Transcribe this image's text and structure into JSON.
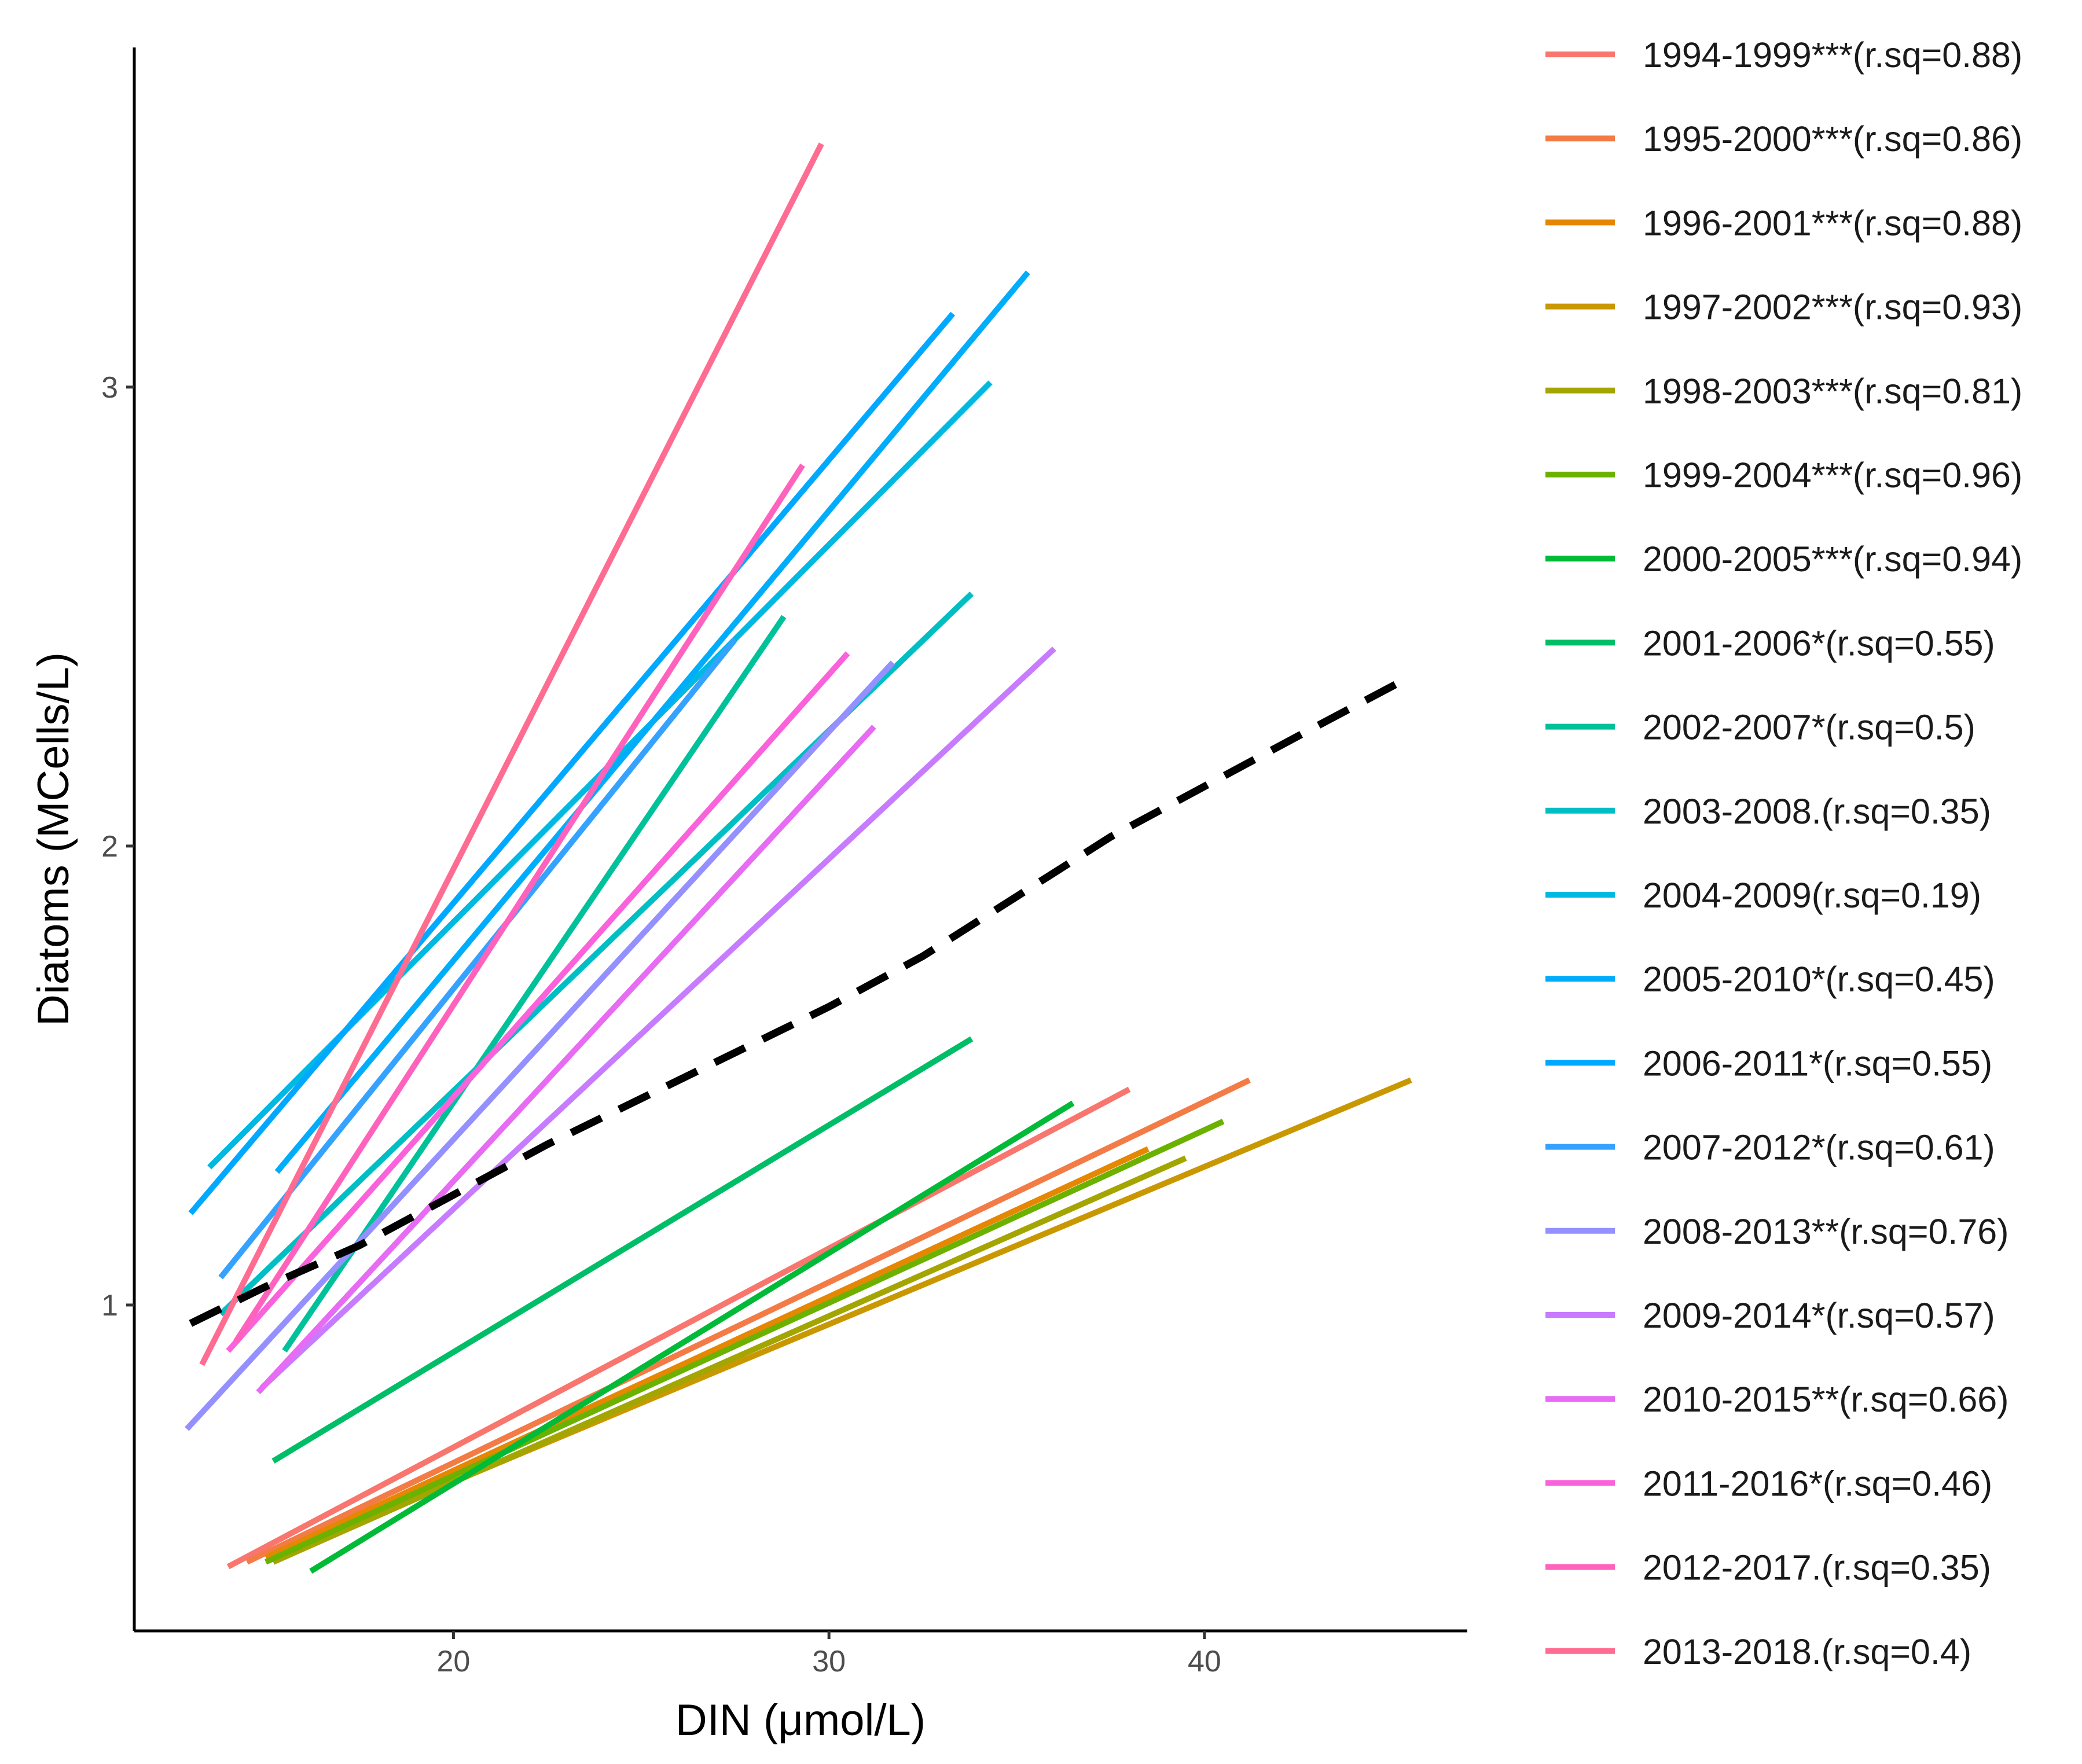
{
  "chart_data": {
    "type": "line",
    "title": "",
    "xlabel": "DIN (μmol/L)",
    "ylabel": "Diatoms (MCells/L)",
    "xlim": [
      11.5,
      47.0
    ],
    "ylim": [
      0.29,
      3.74
    ],
    "xticks": [
      20,
      30,
      40
    ],
    "yticks": [
      1,
      2,
      3
    ],
    "grid": false,
    "legend_position": "right",
    "series": [
      {
        "name": "1994-1999***(r.sq=0.88)",
        "color": "#F8766D",
        "x": [
          14.0,
          38.0
        ],
        "y": [
          0.43,
          1.47
        ]
      },
      {
        "name": "1995-2000***(r.sq=0.86)",
        "color": "#F37B46",
        "x": [
          14.5,
          41.2
        ],
        "y": [
          0.44,
          1.49
        ]
      },
      {
        "name": "1996-2001***(r.sq=0.88)",
        "color": "#E58700",
        "x": [
          15.0,
          38.5
        ],
        "y": [
          0.45,
          1.34
        ]
      },
      {
        "name": "1997-2002***(r.sq=0.93)",
        "color": "#C99800",
        "x": [
          15.2,
          45.5
        ],
        "y": [
          0.45,
          1.49
        ]
      },
      {
        "name": "1998-2003***(r.sq=0.81)",
        "color": "#A3A500",
        "x": [
          15.2,
          39.5
        ],
        "y": [
          0.44,
          1.32
        ]
      },
      {
        "name": "1999-2004***(r.sq=0.96)",
        "color": "#6BB100",
        "x": [
          15.0,
          40.5
        ],
        "y": [
          0.44,
          1.4
        ]
      },
      {
        "name": "2000-2005***(r.sq=0.94)",
        "color": "#00BA38",
        "x": [
          16.2,
          36.5
        ],
        "y": [
          0.42,
          1.44
        ]
      },
      {
        "name": "2001-2006*(r.sq=0.55)",
        "color": "#00BE67",
        "x": [
          15.2,
          33.8
        ],
        "y": [
          0.66,
          1.58
        ]
      },
      {
        "name": "2002-2007*(r.sq=0.5)",
        "color": "#00C19A",
        "x": [
          15.5,
          28.8
        ],
        "y": [
          0.9,
          2.5
        ]
      },
      {
        "name": "2003-2008.(r.sq=0.35)",
        "color": "#00BFC4",
        "x": [
          13.8,
          33.8
        ],
        "y": [
          0.98,
          2.55
        ]
      },
      {
        "name": "2004-2009(r.sq=0.19)",
        "color": "#00B9E3",
        "x": [
          13.5,
          34.3
        ],
        "y": [
          1.3,
          3.01
        ]
      },
      {
        "name": "2005-2010*(r.sq=0.45)",
        "color": "#00ADFA",
        "x": [
          15.3,
          35.3
        ],
        "y": [
          1.29,
          3.25
        ]
      },
      {
        "name": "2006-2011*(r.sq=0.55)",
        "color": "#00A9FF",
        "x": [
          13.0,
          33.3
        ],
        "y": [
          1.2,
          3.16
        ]
      },
      {
        "name": "2007-2012*(r.sq=0.61)",
        "color": "#35A2FF",
        "x": [
          13.8,
          27.5
        ],
        "y": [
          1.06,
          2.45
        ]
      },
      {
        "name": "2008-2013**(r.sq=0.76)",
        "color": "#9590FF",
        "x": [
          12.9,
          31.7
        ],
        "y": [
          0.73,
          2.4
        ]
      },
      {
        "name": "2009-2014*(r.sq=0.57)",
        "color": "#C77CFF",
        "x": [
          14.9,
          36.0
        ],
        "y": [
          0.82,
          2.43
        ]
      },
      {
        "name": "2010-2015**(r.sq=0.66)",
        "color": "#E76BF3",
        "x": [
          14.8,
          31.2
        ],
        "y": [
          0.81,
          2.26
        ]
      },
      {
        "name": "2011-2016*(r.sq=0.46)",
        "color": "#FA62DB",
        "x": [
          14.0,
          30.5
        ],
        "y": [
          0.9,
          2.42
        ]
      },
      {
        "name": "2012-2017.(r.sq=0.35)",
        "color": "#FF62BC",
        "x": [
          14.2,
          29.3
        ],
        "y": [
          0.92,
          2.83
        ]
      },
      {
        "name": "2013-2018.(r.sq=0.4)",
        "color": "#FF6C91",
        "x": [
          13.3,
          29.8
        ],
        "y": [
          0.87,
          3.53
        ]
      }
    ],
    "reference_line": {
      "style": "dashed",
      "color": "#000000",
      "x": [
        13.0,
        15.0,
        17.5,
        20.0,
        22.5,
        25.0,
        27.5,
        30.0,
        32.5,
        35.0,
        37.5,
        40.0,
        42.5,
        45.5
      ],
      "y": [
        0.96,
        1.04,
        1.13,
        1.24,
        1.35,
        1.45,
        1.55,
        1.65,
        1.76,
        1.89,
        2.02,
        2.13,
        2.24,
        2.37
      ]
    }
  }
}
